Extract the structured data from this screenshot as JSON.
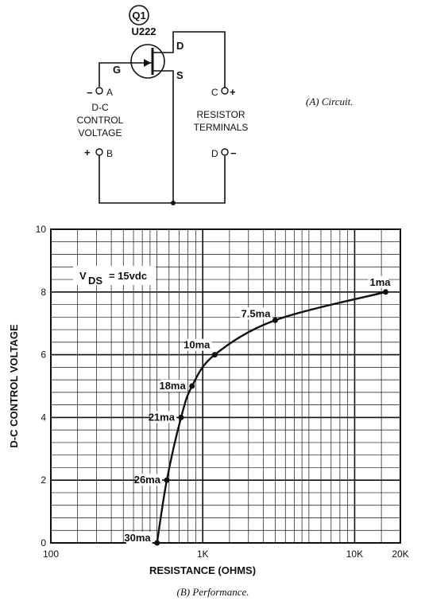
{
  "circuit": {
    "transistor_tag": "Q1",
    "transistor_part": "U222",
    "pin_g": "G",
    "pin_d": "D",
    "pin_s": "S",
    "term_a": "A",
    "term_a_sign": "−",
    "term_b": "B",
    "term_b_sign": "+",
    "control_label_1": "D-C",
    "control_label_2": "CONTROL",
    "control_label_3": "VOLTAGE",
    "term_c": "C",
    "term_c_sign": "+",
    "term_d": "D",
    "term_d_sign": "−",
    "resistor_label_1": "RESISTOR",
    "resistor_label_2": "TERMINALS",
    "caption": "(A) Circuit."
  },
  "performance": {
    "caption": "(B) Performance.",
    "annotation_v": "V",
    "annotation_sub": "DS",
    "annotation_rest": "= 15vdc"
  },
  "chart_data": {
    "type": "line",
    "title": "",
    "xlabel": "RESISTANCE (OHMS)",
    "ylabel": "D-C CONTROL VOLTAGE",
    "x_scale": "log",
    "xlim": [
      100,
      20000
    ],
    "ylim": [
      0,
      10
    ],
    "x_ticks": [
      {
        "value": 100,
        "label": "100"
      },
      {
        "value": 1000,
        "label": "1K"
      },
      {
        "value": 10000,
        "label": "10K"
      },
      {
        "value": 20000,
        "label": "20K"
      }
    ],
    "y_ticks": [
      0,
      2,
      4,
      6,
      8,
      10
    ],
    "grid": true,
    "series": [
      {
        "points": [
          {
            "x": 500,
            "y": 0,
            "label": "30ma"
          },
          {
            "x": 580,
            "y": 2,
            "label": "26ma"
          },
          {
            "x": 720,
            "y": 4,
            "label": "21ma"
          },
          {
            "x": 850,
            "y": 5,
            "label": "18ma"
          },
          {
            "x": 1200,
            "y": 6,
            "label": "10ma"
          },
          {
            "x": 3000,
            "y": 7.1,
            "label": "7.5ma"
          },
          {
            "x": 16000,
            "y": 8,
            "label": "1ma"
          }
        ]
      }
    ]
  }
}
